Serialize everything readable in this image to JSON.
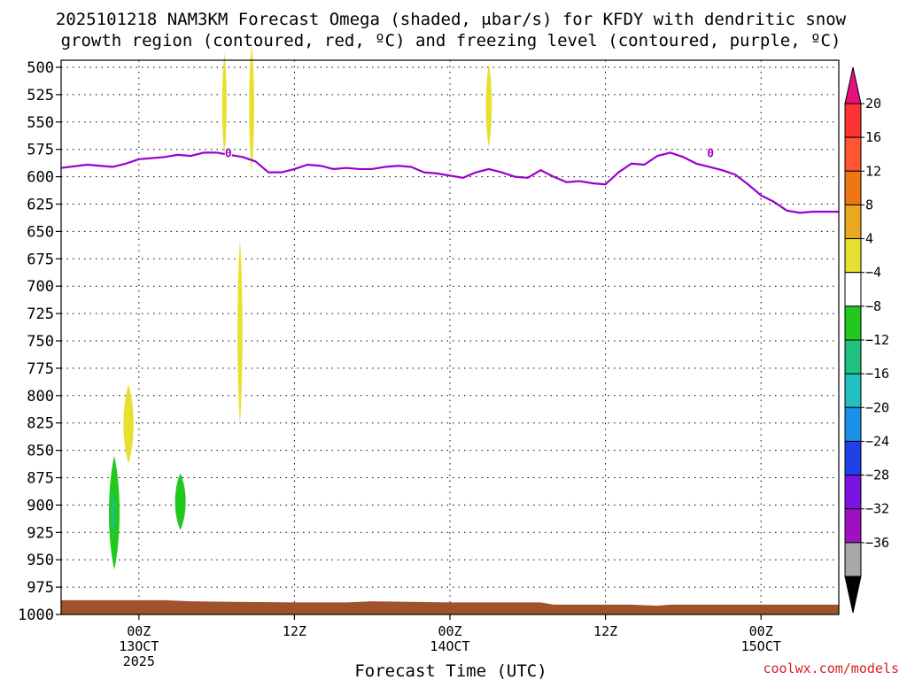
{
  "chart_data": {
    "type": "area",
    "title_line1": "2025101218 NAM3KM Forecast Omega (shaded, μbar/s) for KFDY with dendritic snow",
    "title_line2": "growth region (contoured, red, ºC) and freezing level (contoured, purple, ºC)",
    "xlabel": "Forecast Time (UTC)",
    "credit": "coolwx.com/models",
    "xlim": [
      0,
      60
    ],
    "x_ticks": [
      {
        "x": 6,
        "l1": "00Z",
        "l2": "13OCT",
        "l3": "2025"
      },
      {
        "x": 18,
        "l1": "12Z",
        "l2": "",
        "l3": ""
      },
      {
        "x": 30,
        "l1": "00Z",
        "l2": "14OCT",
        "l3": ""
      },
      {
        "x": 42,
        "l1": "12Z",
        "l2": "",
        "l3": ""
      },
      {
        "x": 54,
        "l1": "00Z",
        "l2": "15OCT",
        "l3": ""
      }
    ],
    "y_ticks": [
      500,
      525,
      550,
      575,
      600,
      625,
      650,
      675,
      700,
      725,
      750,
      775,
      800,
      825,
      850,
      875,
      900,
      925,
      950,
      975,
      1000
    ],
    "ylim": [
      500,
      1000
    ],
    "freezing_level": {
      "color": "#9900cc",
      "label": "0",
      "label_at": [
        [
          12.9,
          578
        ],
        [
          50.1,
          578
        ]
      ],
      "x": [
        0,
        2,
        4,
        5,
        6,
        8,
        9,
        10,
        11,
        12,
        13,
        14,
        15,
        16,
        17,
        18,
        19,
        20,
        21,
        22,
        23,
        24,
        25,
        26,
        27,
        28,
        29,
        30,
        31,
        32,
        33,
        34,
        35,
        36,
        37,
        38,
        39,
        40,
        41,
        42,
        43,
        44,
        45,
        46,
        47,
        48,
        49,
        50,
        51,
        52,
        53,
        54,
        55,
        56,
        57,
        58,
        59,
        60
      ],
      "p": [
        592,
        589,
        591,
        588,
        584,
        582,
        580,
        581,
        578,
        578,
        580,
        582,
        586,
        596,
        596,
        593,
        589,
        590,
        593,
        592,
        593,
        593,
        591,
        590,
        591,
        596,
        597,
        599,
        601,
        596,
        593,
        596,
        600,
        601,
        594,
        600,
        605,
        604,
        606,
        607,
        596,
        588,
        589,
        581,
        578,
        582,
        588,
        591,
        594,
        598,
        607,
        617,
        623,
        631,
        633,
        632,
        632,
        632
      ]
    },
    "omega_features": [
      {
        "x": 12.6,
        "p": 534,
        "hw": 0.18,
        "hh": 47,
        "value": 5,
        "color": "#e8e030"
      },
      {
        "x": 14.7,
        "p": 537,
        "hw": 0.2,
        "hh": 58,
        "value": 6,
        "color": "#e8e030"
      },
      {
        "x": 33.0,
        "p": 535,
        "hw": 0.24,
        "hh": 38,
        "value": 5,
        "color": "#e8e030"
      },
      {
        "x": 13.8,
        "p": 742,
        "hw": 0.2,
        "hh": 84,
        "value": 5,
        "color": "#e8e030"
      },
      {
        "x": 5.2,
        "p": 826,
        "hw": 0.4,
        "hh": 36,
        "value": 5,
        "color": "#e8e030"
      },
      {
        "x": 4.1,
        "p": 907,
        "hw": 0.42,
        "hh": 52,
        "value": -6,
        "color": "#20c820"
      },
      {
        "x": 4.0,
        "p": 907,
        "hw": 0.14,
        "hh": 18,
        "value": -10,
        "color": "#20c080"
      },
      {
        "x": 9.2,
        "p": 897,
        "hw": 0.42,
        "hh": 26,
        "value": -6,
        "color": "#20c820"
      }
    ],
    "terrain": {
      "color": "#a0522d",
      "x": [
        0,
        8,
        10,
        18,
        22,
        24,
        30,
        37,
        38,
        44,
        46,
        47,
        60
      ],
      "p": [
        987,
        987,
        988,
        989,
        989,
        988,
        989,
        989,
        991,
        991,
        992,
        991,
        991
      ]
    },
    "colorbar": {
      "labels": [
        "20",
        "16",
        "12",
        "8",
        "4",
        "−4",
        "−8",
        "−12",
        "−16",
        "−20",
        "−24",
        "−28",
        "−32",
        "−36"
      ],
      "colors": [
        "#ff3333",
        "#ff5533",
        "#ee7711",
        "#e8a820",
        "#e8e030",
        "#ffffff",
        "#20c820",
        "#20c080",
        "#20c0c0",
        "#1a90e8",
        "#2040e8",
        "#7a14e0",
        "#a010c0",
        "#a8a8a8"
      ],
      "top_color": "#e8107e",
      "bottom_color": "#000000"
    }
  }
}
